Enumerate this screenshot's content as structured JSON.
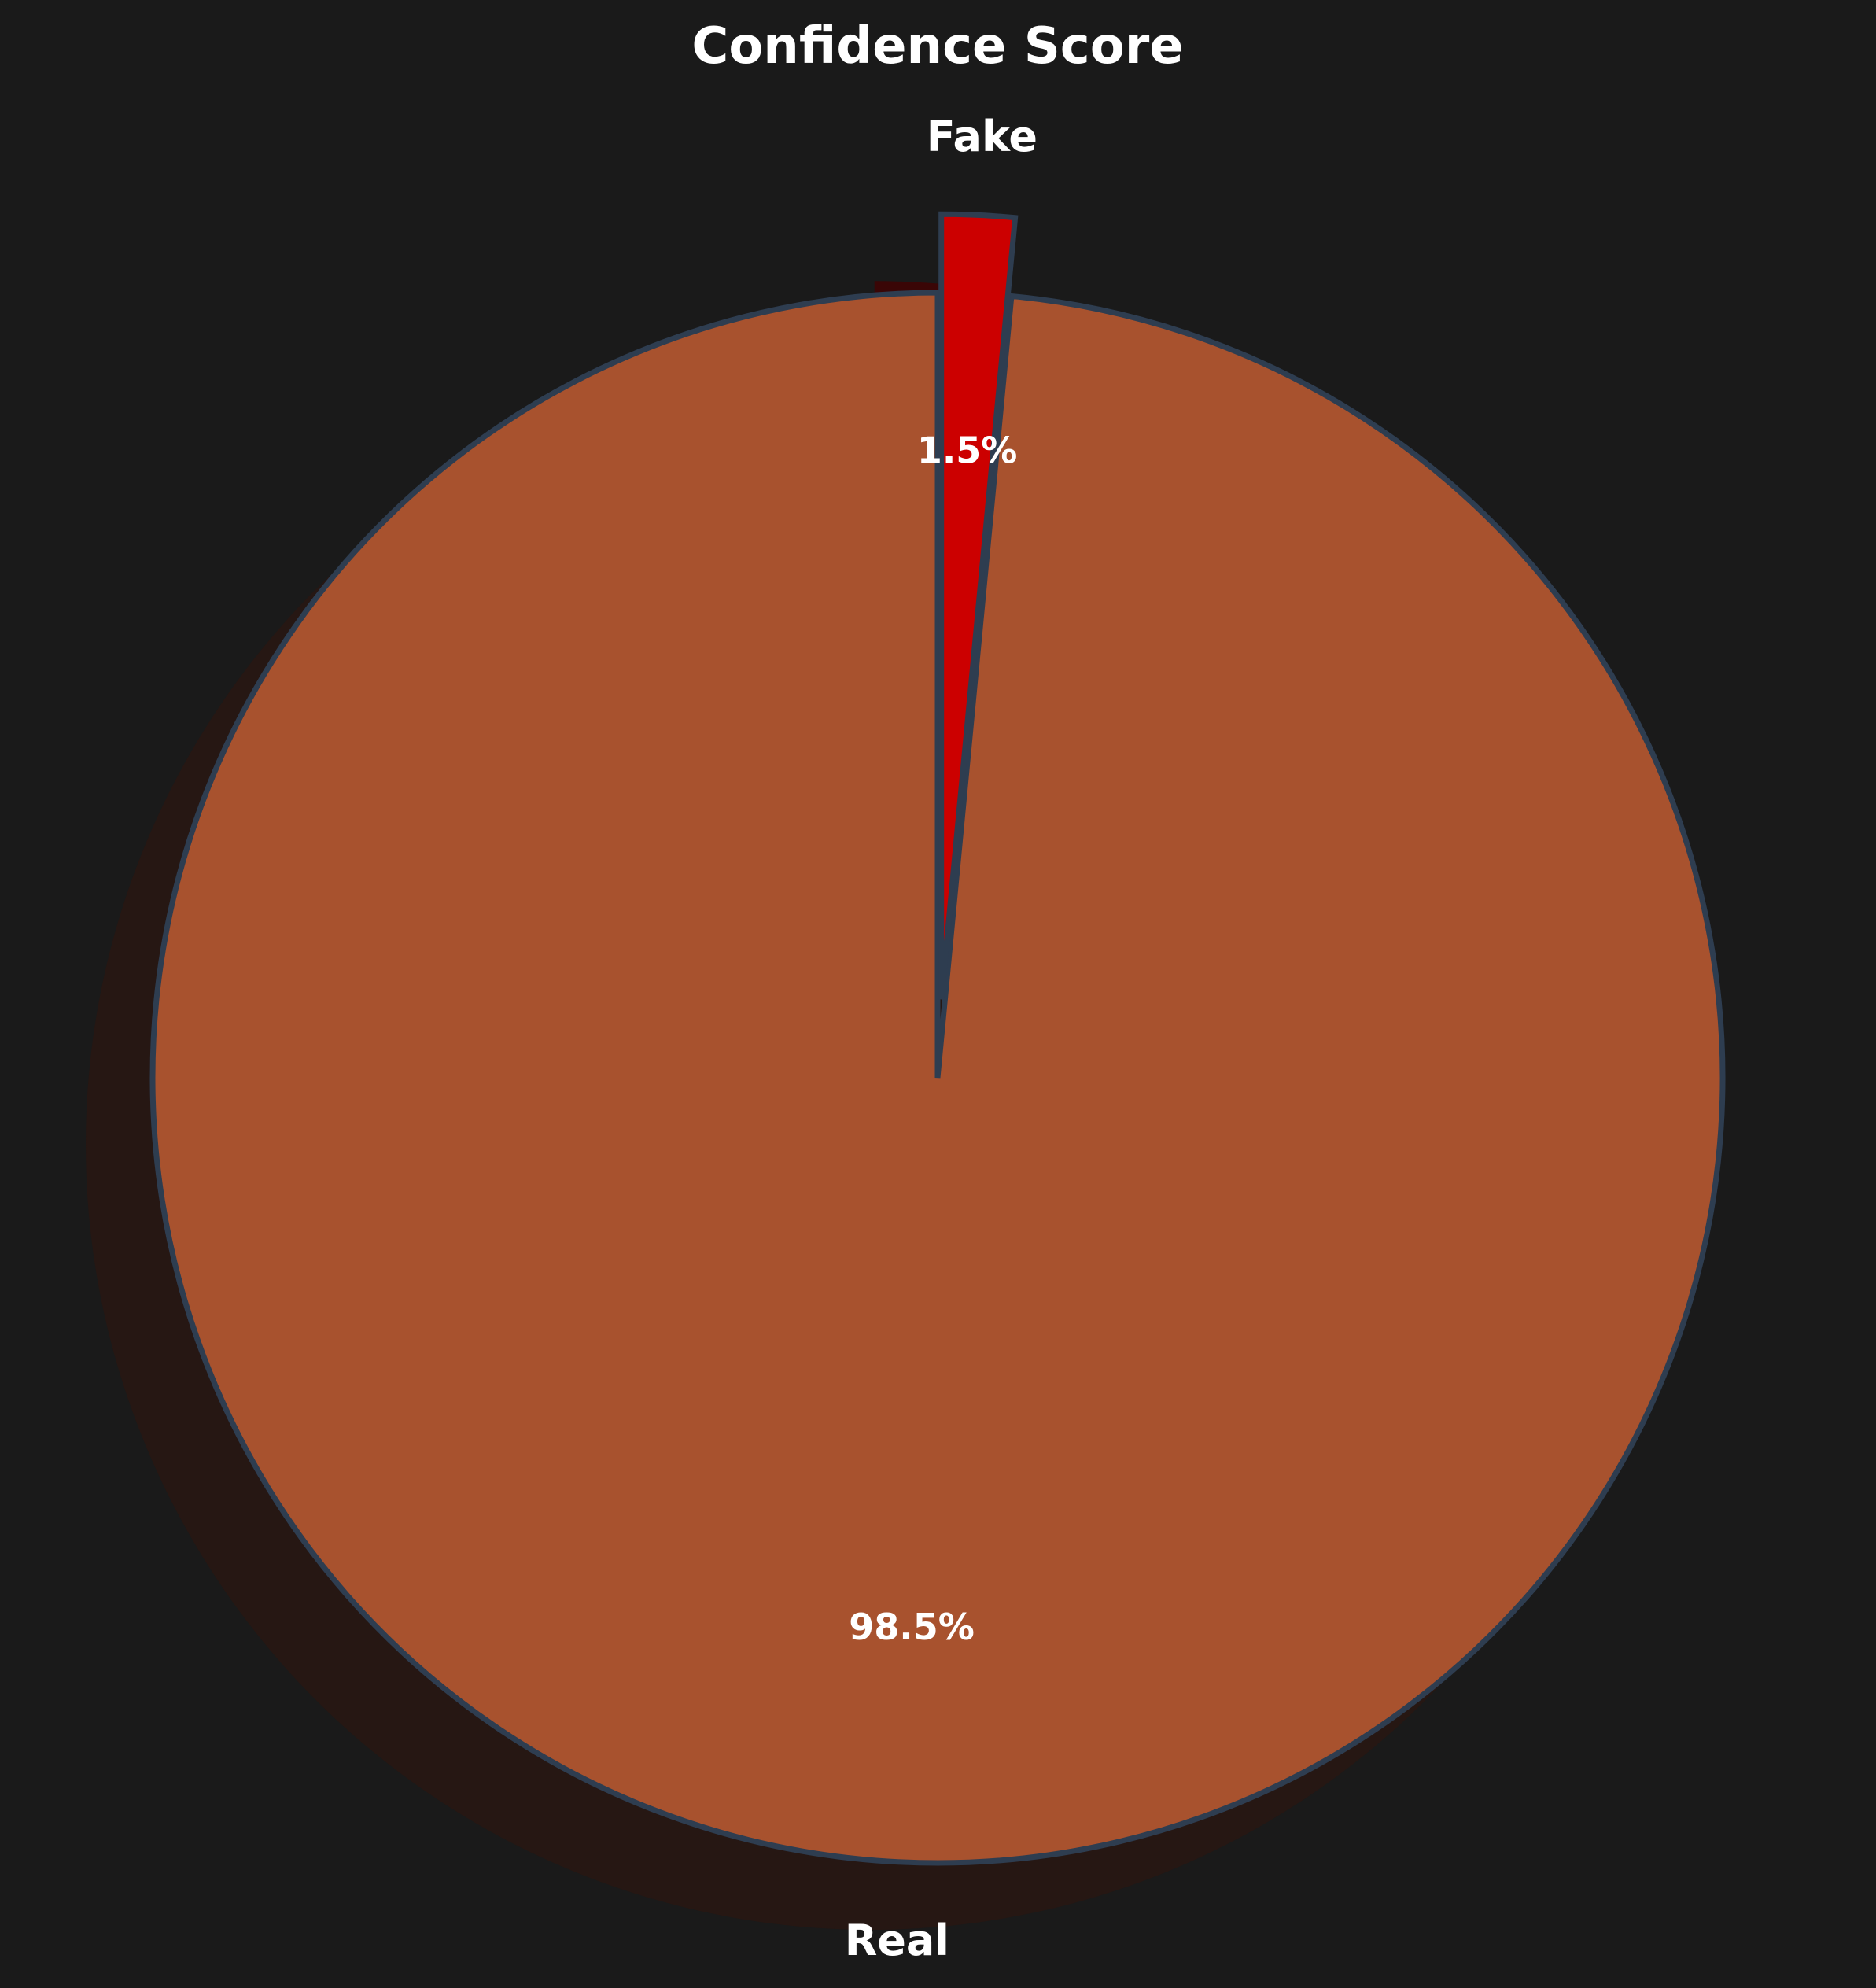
{
  "chart_data": {
    "type": "pie",
    "title": "Confidence Score",
    "start_angle": 90,
    "direction": "clockwise",
    "shadow": true,
    "slices": [
      {
        "label": "Fake",
        "value": 1.5,
        "pct_label": "1.5%",
        "color": "#cc0000",
        "exploded": true
      },
      {
        "label": "Real",
        "value": 98.5,
        "pct_label": "98.5%",
        "color": "#a8522e",
        "exploded": false
      }
    ],
    "edge_color": "#2e3d50",
    "background": "#1a1a1a",
    "shadow_color": "#261713"
  }
}
